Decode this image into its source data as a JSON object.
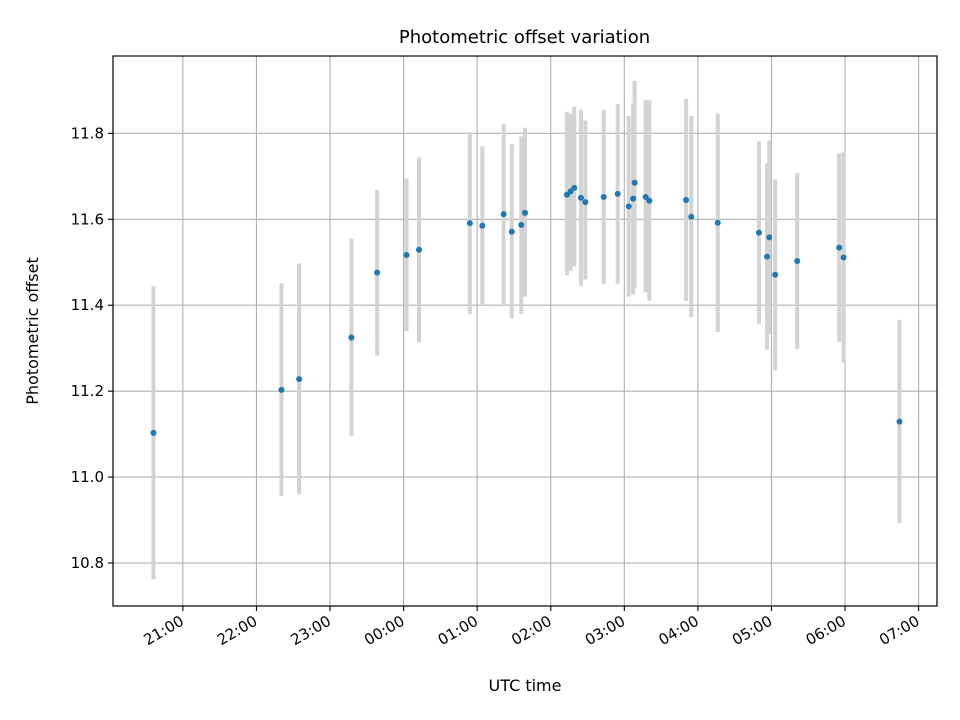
{
  "chart_data": {
    "type": "scatter",
    "title": "Photometric offset variation",
    "xlabel": "UTC time",
    "ylabel": "Photometric offset",
    "grid": true,
    "x_tick_labels": [
      "21:00",
      "22:00",
      "23:00",
      "00:00",
      "01:00",
      "02:00",
      "03:00",
      "04:00",
      "05:00",
      "06:00",
      "07:00"
    ],
    "x_tick_hours": [
      21,
      22,
      23,
      24,
      25,
      26,
      27,
      28,
      29,
      30,
      31
    ],
    "xlim_hours": [
      20.05,
      31.25
    ],
    "y_ticks": [
      10.8,
      11.0,
      11.2,
      11.4,
      11.6,
      11.8
    ],
    "y_tick_labels": [
      "10.8",
      "11.0",
      "11.2",
      "11.4",
      "11.6",
      "11.8"
    ],
    "ylim": [
      10.7,
      11.98
    ],
    "colors": {
      "point": "#1f77b4",
      "errorbar": "#d3d3d3",
      "grid": "#b0b0b0"
    },
    "points": [
      {
        "t": "20:36",
        "h": 20.6,
        "y": 11.103,
        "lo": 10.762,
        "hi": 11.444
      },
      {
        "t": "22:20",
        "h": 22.34,
        "y": 11.203,
        "lo": 10.956,
        "hi": 11.451
      },
      {
        "t": "22:35",
        "h": 22.58,
        "y": 11.228,
        "lo": 10.96,
        "hi": 11.497
      },
      {
        "t": "23:17",
        "h": 23.29,
        "y": 11.325,
        "lo": 11.096,
        "hi": 11.555
      },
      {
        "t": "23:38",
        "h": 23.64,
        "y": 11.476,
        "lo": 11.283,
        "hi": 11.668
      },
      {
        "t": "00:02",
        "h": 24.04,
        "y": 11.517,
        "lo": 11.34,
        "hi": 11.695
      },
      {
        "t": "00:12",
        "h": 24.21,
        "y": 11.529,
        "lo": 11.314,
        "hi": 11.744
      },
      {
        "t": "00:54",
        "h": 24.9,
        "y": 11.591,
        "lo": 11.38,
        "hi": 11.803
      },
      {
        "t": "01:04",
        "h": 25.07,
        "y": 11.585,
        "lo": 11.4,
        "hi": 11.77
      },
      {
        "t": "01:21",
        "h": 25.36,
        "y": 11.612,
        "lo": 11.4,
        "hi": 11.822
      },
      {
        "t": "01:28",
        "h": 25.47,
        "y": 11.571,
        "lo": 11.37,
        "hi": 11.775
      },
      {
        "t": "01:36",
        "h": 25.6,
        "y": 11.587,
        "lo": 11.38,
        "hi": 11.793
      },
      {
        "t": "01:39",
        "h": 25.65,
        "y": 11.615,
        "lo": 11.42,
        "hi": 11.813
      },
      {
        "t": "02:13",
        "h": 26.22,
        "y": 11.657,
        "lo": 11.47,
        "hi": 11.85
      },
      {
        "t": "02:16",
        "h": 26.27,
        "y": 11.665,
        "lo": 11.48,
        "hi": 11.845
      },
      {
        "t": "02:19",
        "h": 26.32,
        "y": 11.673,
        "lo": 11.49,
        "hi": 11.862
      },
      {
        "t": "02:24",
        "h": 26.41,
        "y": 11.65,
        "lo": 11.445,
        "hi": 11.855
      },
      {
        "t": "02:28",
        "h": 26.47,
        "y": 11.64,
        "lo": 11.46,
        "hi": 11.83
      },
      {
        "t": "02:43",
        "h": 26.72,
        "y": 11.652,
        "lo": 11.45,
        "hi": 11.855
      },
      {
        "t": "02:54",
        "h": 26.91,
        "y": 11.659,
        "lo": 11.45,
        "hi": 11.868
      },
      {
        "t": "03:03",
        "h": 27.06,
        "y": 11.63,
        "lo": 11.42,
        "hi": 11.84
      },
      {
        "t": "03:07",
        "h": 27.12,
        "y": 11.648,
        "lo": 11.425,
        "hi": 11.87
      },
      {
        "t": "03:08",
        "h": 27.14,
        "y": 11.685,
        "lo": 11.44,
        "hi": 11.922
      },
      {
        "t": "03:17",
        "h": 27.29,
        "y": 11.652,
        "lo": 11.43,
        "hi": 11.877
      },
      {
        "t": "03:20",
        "h": 27.34,
        "y": 11.643,
        "lo": 11.41,
        "hi": 11.877
      },
      {
        "t": "03:50",
        "h": 27.84,
        "y": 11.645,
        "lo": 11.41,
        "hi": 11.88
      },
      {
        "t": "03:54",
        "h": 27.91,
        "y": 11.606,
        "lo": 11.373,
        "hi": 11.84
      },
      {
        "t": "04:16",
        "h": 28.27,
        "y": 11.592,
        "lo": 11.338,
        "hi": 11.846
      },
      {
        "t": "04:50",
        "h": 28.83,
        "y": 11.569,
        "lo": 11.357,
        "hi": 11.781
      },
      {
        "t": "04:56",
        "h": 28.94,
        "y": 11.513,
        "lo": 11.297,
        "hi": 11.73
      },
      {
        "t": "04:58",
        "h": 28.97,
        "y": 11.558,
        "lo": 11.333,
        "hi": 11.783
      },
      {
        "t": "05:03",
        "h": 29.05,
        "y": 11.471,
        "lo": 11.248,
        "hi": 11.693
      },
      {
        "t": "05:21",
        "h": 29.35,
        "y": 11.503,
        "lo": 11.298,
        "hi": 11.708
      },
      {
        "t": "05:55",
        "h": 29.92,
        "y": 11.534,
        "lo": 11.315,
        "hi": 11.753
      },
      {
        "t": "05:59",
        "h": 29.98,
        "y": 11.511,
        "lo": 11.266,
        "hi": 11.756
      },
      {
        "t": "06:44",
        "h": 30.74,
        "y": 11.129,
        "lo": 10.893,
        "hi": 11.366
      }
    ]
  }
}
